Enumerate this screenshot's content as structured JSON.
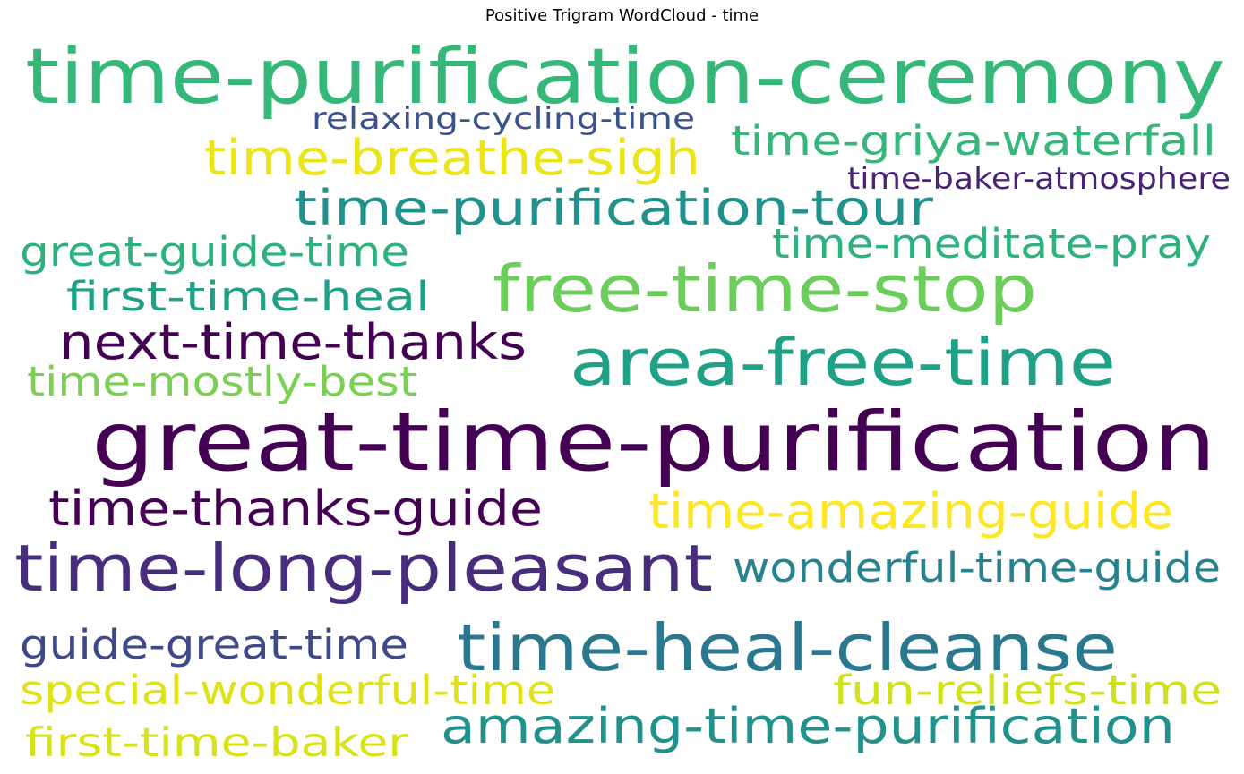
{
  "title": "Positive Trigram WordCloud - time",
  "words": [
    {
      "text": "time-purification-ceremony",
      "color": "#35b779"
    },
    {
      "text": "relaxing-cycling-time",
      "color": "#3b528b"
    },
    {
      "text": "time-griya-waterfall",
      "color": "#35b779"
    },
    {
      "text": "time-breathe-sigh",
      "color": "#e9e51a"
    },
    {
      "text": "time-baker-atmosphere",
      "color": "#482475"
    },
    {
      "text": "time-purification-tour",
      "color": "#21918c"
    },
    {
      "text": "great-guide-time",
      "color": "#2db27d"
    },
    {
      "text": "time-meditate-pray",
      "color": "#2db27d"
    },
    {
      "text": "first-time-heal",
      "color": "#1fa187"
    },
    {
      "text": "free-time-stop",
      "color": "#6ccd5a"
    },
    {
      "text": "next-time-thanks",
      "color": "#440154"
    },
    {
      "text": "area-free-time",
      "color": "#1fa187"
    },
    {
      "text": "time-mostly-best",
      "color": "#7ad151"
    },
    {
      "text": "great-time-purification",
      "color": "#440154"
    },
    {
      "text": "time-thanks-guide",
      "color": "#440154"
    },
    {
      "text": "time-amazing-guide",
      "color": "#fde725"
    },
    {
      "text": "time-long-pleasant",
      "color": "#472d7b"
    },
    {
      "text": "wonderful-time-guide",
      "color": "#26828e"
    },
    {
      "text": "guide-great-time",
      "color": "#3e4989"
    },
    {
      "text": "time-heal-cleanse",
      "color": "#2a788e"
    },
    {
      "text": "special-wonderful-time",
      "color": "#dde318"
    },
    {
      "text": "fun-reliefs-time",
      "color": "#d0e11c"
    },
    {
      "text": "first-time-baker",
      "color": "#d8e219"
    },
    {
      "text": "amazing-time-purification",
      "color": "#21918c"
    }
  ]
}
